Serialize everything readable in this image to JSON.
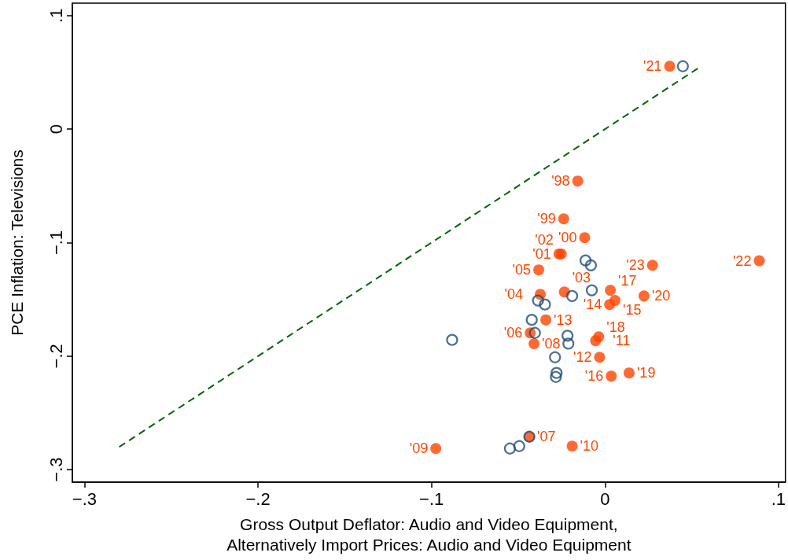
{
  "chart_data": {
    "type": "scatter",
    "xlabel": "Gross Output Deflator: Audio and Video Equipment,\nAlternatively Import Prices: Audio and Video Equipment",
    "ylabel": "PCE Inflation: Televisions",
    "xlim": [
      -0.307,
      0.104
    ],
    "ylim": [
      -0.311,
      0.111
    ],
    "xticks": [
      {
        "value": -0.3,
        "label": "−.3"
      },
      {
        "value": -0.2,
        "label": "−.2"
      },
      {
        "value": -0.1,
        "label": "−.1"
      },
      0,
      {
        "value": 0.1,
        "label": ".1"
      }
    ],
    "yticks": [
      {
        "value": -0.3,
        "label": "−.3"
      },
      {
        "value": -0.2,
        "label": "−.2"
      },
      {
        "value": -0.1,
        "label": "−.1"
      },
      0,
      {
        "value": 0.1,
        "label": ".1"
      }
    ],
    "grid": false,
    "marker": "circle",
    "series": [
      {
        "type": "line",
        "color": "#006400",
        "line_style": "dashed",
        "marker": "none",
        "x": [
          -0.28,
          0.055
        ],
        "values": [
          -0.28,
          0.055
        ]
      },
      {
        "color": "#1f4e79",
        "x": [
          0.0449,
          -0.0881,
          -0.0112,
          -0.0081,
          -0.0076,
          -0.0189,
          -0.0386,
          -0.0346,
          -0.0422,
          -0.0404,
          -0.0216,
          -0.0211,
          -0.0288,
          -0.0279,
          -0.0283,
          -0.0436,
          -0.0548,
          -0.0494
        ],
        "values": [
          0.0554,
          -0.1857,
          -0.1157,
          -0.12,
          -0.142,
          -0.147,
          -0.151,
          -0.1545,
          -0.168,
          -0.1795,
          -0.182,
          -0.189,
          -0.201,
          -0.2148,
          -0.2183,
          -0.271,
          -0.2814,
          -0.2793
        ]
      },
      {
        "color": "#ff4500",
        "x": [
          -0.0157,
          -0.0238,
          -0.0117,
          -0.0265,
          -0.0252,
          -0.0234,
          -0.0373,
          -0.0382,
          -0.0431,
          -0.0436,
          -0.0409,
          -0.0975,
          -0.0189,
          -0.0054,
          -0.0031,
          -0.0341,
          0.0027,
          0.0058,
          0.0036,
          0.0031,
          -0.0036,
          0.0139,
          0.0225,
          0.0373,
          0.0889,
          0.0274
        ],
        "values": [
          -0.0457,
          -0.079,
          -0.0956,
          -0.11,
          -0.11,
          -0.1435,
          -0.1455,
          -0.124,
          -0.1795,
          -0.271,
          -0.189,
          -0.2814,
          -0.2793,
          -0.1864,
          -0.201,
          -0.168,
          -0.1545,
          -0.151,
          -0.2176,
          -0.142,
          -0.183,
          -0.2148,
          -0.147,
          0.0554,
          -0.116,
          -0.12
        ]
      }
    ],
    "annotations": [
      {
        "text": "'98",
        "x": -0.0157,
        "y": -0.0457
      },
      {
        "text": "'99",
        "x": -0.0238,
        "y": -0.079
      },
      {
        "text": "'00",
        "x": -0.0117,
        "y": -0.0956
      },
      {
        "text": "'01",
        "x": -0.0265,
        "y": -0.11
      },
      {
        "text": "'02",
        "x": -0.0252,
        "y": -0.11
      },
      {
        "text": "'03",
        "x": -0.0234,
        "y": -0.1435
      },
      {
        "text": "'04",
        "x": -0.0373,
        "y": -0.1455
      },
      {
        "text": "'05",
        "x": -0.0382,
        "y": -0.124
      },
      {
        "text": "'06",
        "x": -0.0431,
        "y": -0.1795
      },
      {
        "text": "'07",
        "x": -0.0436,
        "y": -0.271
      },
      {
        "text": "'08",
        "x": -0.0409,
        "y": -0.189
      },
      {
        "text": "'09",
        "x": -0.0975,
        "y": -0.2814
      },
      {
        "text": "'10",
        "x": -0.0189,
        "y": -0.2793
      },
      {
        "text": "'11",
        "x": -0.0054,
        "y": -0.1864
      },
      {
        "text": "'12",
        "x": -0.0031,
        "y": -0.201
      },
      {
        "text": "'13",
        "x": -0.0341,
        "y": -0.168
      },
      {
        "text": "'14",
        "x": 0.0027,
        "y": -0.1545
      },
      {
        "text": "'15",
        "x": 0.0058,
        "y": -0.151
      },
      {
        "text": "'16",
        "x": 0.0036,
        "y": -0.2176
      },
      {
        "text": "'17",
        "x": 0.0031,
        "y": -0.142
      },
      {
        "text": "'18",
        "x": -0.0036,
        "y": -0.183
      },
      {
        "text": "'19",
        "x": 0.0139,
        "y": -0.2148
      },
      {
        "text": "'20",
        "x": 0.0225,
        "y": -0.147
      },
      {
        "text": "'21",
        "x": 0.0373,
        "y": 0.0554
      },
      {
        "text": "'22",
        "x": 0.0889,
        "y": -0.116
      },
      {
        "text": "'23",
        "x": 0.0274,
        "y": -0.12
      }
    ]
  }
}
